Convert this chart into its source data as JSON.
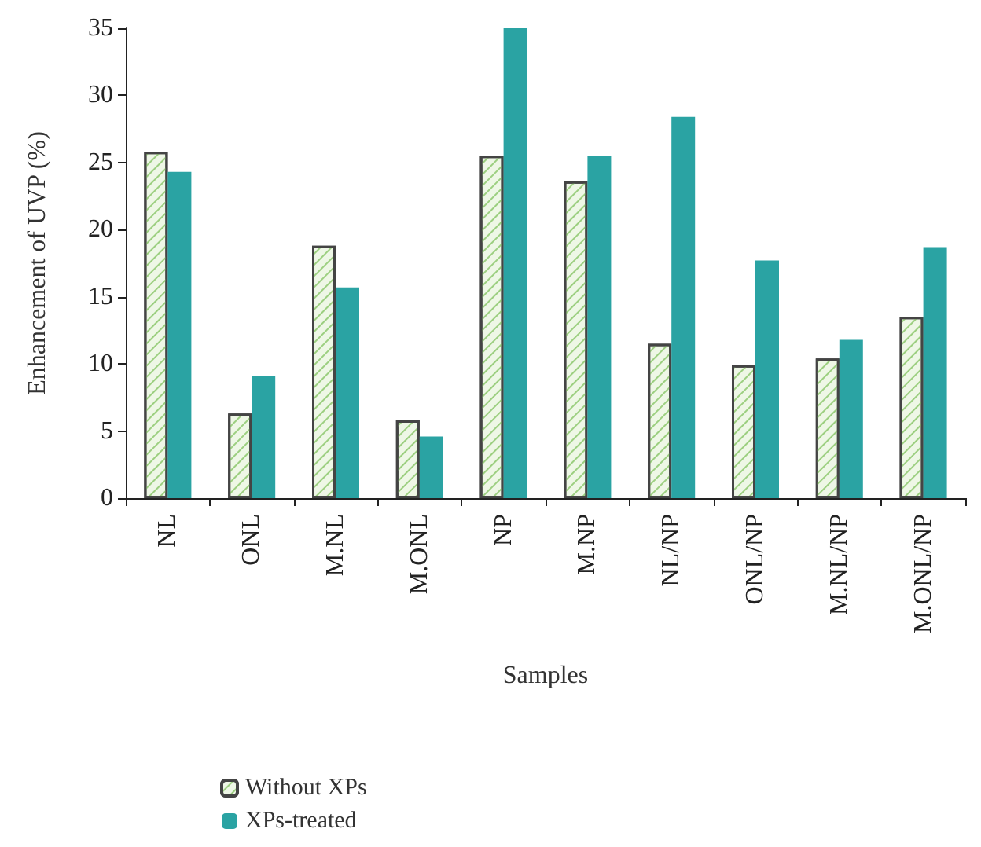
{
  "chart_data": {
    "type": "bar",
    "xlabel": "Samples",
    "ylabel": "Enhancement of UVP (%)",
    "categories": [
      "NL",
      "ONL",
      "M.NL",
      "M.ONL",
      "NP",
      "M.NP",
      "NL/NP",
      "ONL/NP",
      "M.NL/NP",
      "M.ONL/NP"
    ],
    "series": [
      {
        "name": "Without XPs",
        "color": "#eef7e6",
        "values": [
          25.8,
          6.3,
          18.8,
          5.8,
          25.5,
          23.6,
          11.5,
          9.9,
          10.4,
          13.5
        ]
      },
      {
        "name": "XPs-treated",
        "color": "#2aa3a3",
        "values": [
          24.3,
          9.1,
          15.7,
          4.6,
          35,
          25.5,
          28.4,
          17.7,
          11.8,
          18.7
        ]
      }
    ],
    "ylim": [
      0,
      35
    ],
    "yticks": [
      0,
      5,
      10,
      15,
      20,
      25,
      30,
      35
    ],
    "grid": false,
    "legend": "bottom left"
  }
}
